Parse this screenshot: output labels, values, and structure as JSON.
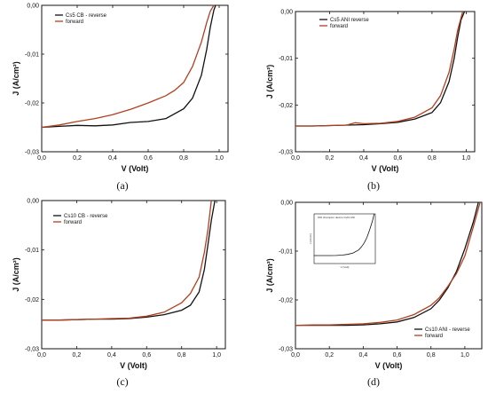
{
  "chart_data": [
    {
      "type": "line",
      "panel_label": "(a)",
      "xlabel": "V (Volt)",
      "ylabel": "J (A/cm²)",
      "xlim": [
        0.0,
        1.05
      ],
      "ylim": [
        -0.03,
        0.0
      ],
      "xticks": [
        "0,0",
        "0,2",
        "0,4",
        "0,6",
        "0,8",
        "1,0"
      ],
      "yticks": [
        "0,00",
        "-0,01",
        "-0,02",
        "-0,03"
      ],
      "legend_position": "top-left",
      "series": [
        {
          "name": "Cs5 CB - reverse",
          "color": "#111111",
          "x": [
            0,
            0.1,
            0.2,
            0.3,
            0.4,
            0.5,
            0.6,
            0.7,
            0.8,
            0.85,
            0.9,
            0.93,
            0.95,
            0.97,
            0.98
          ],
          "y": [
            -0.025,
            -0.0248,
            -0.0246,
            -0.0247,
            -0.0245,
            -0.024,
            -0.0238,
            -0.0232,
            -0.0212,
            -0.019,
            -0.0143,
            -0.009,
            -0.0045,
            -0.001,
            0.0
          ]
        },
        {
          "name": "forward",
          "color": "#b04020",
          "x": [
            0,
            0.1,
            0.2,
            0.3,
            0.4,
            0.5,
            0.6,
            0.7,
            0.75,
            0.8,
            0.85,
            0.9,
            0.93,
            0.95,
            0.97
          ],
          "y": [
            -0.025,
            -0.0245,
            -0.0238,
            -0.0232,
            -0.0224,
            -0.0213,
            -0.02,
            -0.0185,
            -0.0174,
            -0.0158,
            -0.0125,
            -0.0075,
            -0.0035,
            -0.0012,
            0.0
          ]
        }
      ]
    },
    {
      "type": "line",
      "panel_label": "(b)",
      "xlabel": "V (Volt)",
      "ylabel": "J (A/cm²)",
      "xlim": [
        0.0,
        1.05
      ],
      "ylim": [
        -0.03,
        0.0
      ],
      "xticks": [
        "0,0",
        "0,2",
        "0,4",
        "0,6",
        "0,8",
        "1,0"
      ],
      "yticks": [
        "0,00",
        "-0,01",
        "-0,02",
        "-0,03"
      ],
      "legend_position": "top-left",
      "series": [
        {
          "name": "Cs5 ANI reverse",
          "color": "#111111",
          "x": [
            0,
            0.1,
            0.2,
            0.3,
            0.4,
            0.5,
            0.6,
            0.7,
            0.8,
            0.85,
            0.9,
            0.93,
            0.95,
            0.97,
            0.99
          ],
          "y": [
            -0.0245,
            -0.0245,
            -0.0244,
            -0.0243,
            -0.0242,
            -0.024,
            -0.0237,
            -0.023,
            -0.0216,
            -0.0195,
            -0.015,
            -0.01,
            -0.0055,
            -0.0018,
            0.0
          ]
        },
        {
          "name": "forward",
          "color": "#b04020",
          "x": [
            0,
            0.1,
            0.2,
            0.3,
            0.35,
            0.4,
            0.5,
            0.6,
            0.7,
            0.8,
            0.85,
            0.9,
            0.93,
            0.95,
            0.98
          ],
          "y": [
            -0.0245,
            -0.0245,
            -0.0244,
            -0.0243,
            -0.0238,
            -0.024,
            -0.0239,
            -0.0235,
            -0.0226,
            -0.0206,
            -0.018,
            -0.013,
            -0.008,
            -0.004,
            0.0
          ]
        }
      ]
    },
    {
      "type": "line",
      "panel_label": "(c)",
      "xlabel": "V (Volt)",
      "ylabel": "J (A/cm²)",
      "xlim": [
        0.0,
        1.05
      ],
      "ylim": [
        -0.03,
        0.0
      ],
      "xticks": [
        "0,0",
        "0,2",
        "0,4",
        "0,6",
        "0,8",
        "1,0"
      ],
      "yticks": [
        "0,00",
        "-0,01",
        "-0,02",
        "-0,03"
      ],
      "legend_position": "top-left",
      "series": [
        {
          "name": "Cs10 CB - reverse",
          "color": "#111111",
          "x": [
            0,
            0.1,
            0.2,
            0.3,
            0.4,
            0.5,
            0.6,
            0.7,
            0.8,
            0.85,
            0.9,
            0.93,
            0.95,
            0.97,
            0.99
          ],
          "y": [
            -0.0242,
            -0.0242,
            -0.0241,
            -0.024,
            -0.024,
            -0.0239,
            -0.0236,
            -0.0231,
            -0.0222,
            -0.0212,
            -0.0185,
            -0.014,
            -0.009,
            -0.004,
            0.0
          ]
        },
        {
          "name": "forward",
          "color": "#b04020",
          "x": [
            0,
            0.1,
            0.2,
            0.3,
            0.4,
            0.5,
            0.6,
            0.7,
            0.8,
            0.85,
            0.9,
            0.93,
            0.95,
            0.97
          ],
          "y": [
            -0.0242,
            -0.0242,
            -0.0241,
            -0.024,
            -0.0239,
            -0.0238,
            -0.0234,
            -0.0226,
            -0.0207,
            -0.0188,
            -0.0155,
            -0.0105,
            -0.006,
            0.0
          ]
        }
      ]
    },
    {
      "type": "line",
      "panel_label": "(d)",
      "xlabel": "V (Volt)",
      "ylabel": "J (A/cm²)",
      "xlim": [
        0.0,
        1.1
      ],
      "ylim": [
        -0.03,
        0.0
      ],
      "xticks": [
        "0,0",
        "0,2",
        "0,4",
        "0,6",
        "0,8",
        "1,0"
      ],
      "yticks": [
        "0,00",
        "-0,01",
        "-0,02",
        "-0,03"
      ],
      "legend_position": "bottom-right",
      "series": [
        {
          "name": "Cs10 ANI - reverse",
          "color": "#111111",
          "x": [
            0,
            0.1,
            0.2,
            0.3,
            0.4,
            0.5,
            0.6,
            0.7,
            0.8,
            0.85,
            0.9,
            0.95,
            1.0,
            1.05,
            1.08
          ],
          "y": [
            -0.0252,
            -0.0252,
            -0.0252,
            -0.0252,
            -0.0251,
            -0.0249,
            -0.0245,
            -0.0236,
            -0.0218,
            -0.02,
            -0.0175,
            -0.0142,
            -0.0095,
            -0.004,
            0.0
          ]
        },
        {
          "name": "forward",
          "color": "#b04020",
          "x": [
            0,
            0.1,
            0.2,
            0.3,
            0.4,
            0.5,
            0.6,
            0.7,
            0.8,
            0.85,
            0.9,
            0.95,
            1.0,
            1.05,
            1.09
          ],
          "y": [
            -0.0252,
            -0.0251,
            -0.0251,
            -0.025,
            -0.0249,
            -0.0246,
            -0.0241,
            -0.023,
            -0.0211,
            -0.0195,
            -0.0172,
            -0.0146,
            -0.011,
            -0.005,
            0.0
          ]
        }
      ],
      "inset": {
        "legend": "champion device Cs10 ANI",
        "xlabel": "V (Volt)",
        "ylabel": "J (A/cm²)"
      }
    }
  ]
}
